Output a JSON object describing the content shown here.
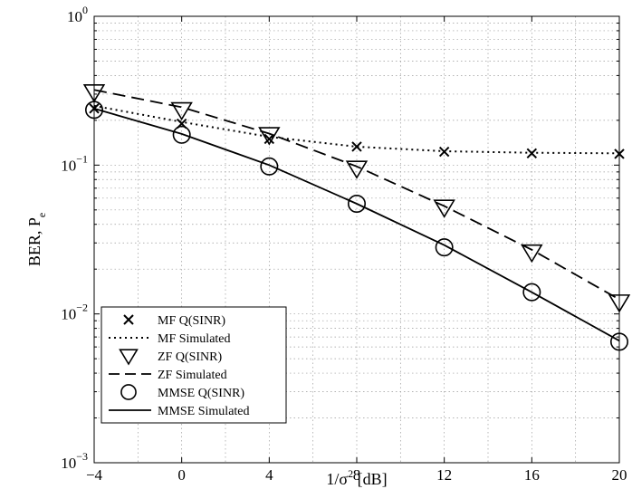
{
  "chart_data": {
    "type": "line",
    "title": "",
    "xlabel": "1/σ",
    "xlabel_sup": "2",
    "xlabel_suffix": " [dB]",
    "ylabel": "BER, P",
    "ylabel_sub": "e",
    "x_ticks": [
      -4,
      0,
      4,
      8,
      12,
      16,
      20
    ],
    "x_tick_labels": [
      "−4",
      "0",
      "4",
      "8",
      "12",
      "16",
      "20"
    ],
    "xlim": [
      -4,
      20
    ],
    "y_scale": "log",
    "ylim": [
      0.001,
      1
    ],
    "y_ticks": [
      {
        "value": 1,
        "base": "10",
        "exp": "0"
      },
      {
        "value": 0.1,
        "base": "10",
        "exp": "−1"
      },
      {
        "value": 0.01,
        "base": "10",
        "exp": "−2"
      },
      {
        "value": 0.001,
        "base": "10",
        "exp": "−3"
      }
    ],
    "grid": true,
    "legend_position": "bottom-left",
    "x": [
      -4,
      0,
      4,
      8,
      12,
      16,
      20
    ],
    "series": [
      {
        "name": "MF Q(SINR)",
        "style": "marker",
        "marker": "x",
        "values": [
          0.24,
          0.19,
          0.15,
          0.133,
          0.123,
          0.12,
          0.119
        ]
      },
      {
        "name": "MF Simulated",
        "style": "dotted",
        "values": [
          0.25,
          0.195,
          0.155,
          0.133,
          0.124,
          0.121,
          0.12
        ]
      },
      {
        "name": "ZF Q(SINR)",
        "style": "marker",
        "marker": "triangle-down",
        "values": [
          0.31,
          0.235,
          0.16,
          0.095,
          0.052,
          0.026,
          0.012
        ]
      },
      {
        "name": "ZF Simulated",
        "style": "dashed",
        "values": [
          0.32,
          0.245,
          0.163,
          0.098,
          0.053,
          0.027,
          0.0125
        ]
      },
      {
        "name": "MMSE Q(SINR)",
        "style": "marker",
        "marker": "circle",
        "values": [
          0.235,
          0.16,
          0.098,
          0.055,
          0.028,
          0.014,
          0.0065
        ]
      },
      {
        "name": "MMSE Simulated",
        "style": "solid",
        "values": [
          0.24,
          0.162,
          0.1,
          0.055,
          0.029,
          0.014,
          0.0066
        ]
      }
    ],
    "colors": {
      "line": "#000000",
      "grid": "#9a9a9a"
    }
  }
}
